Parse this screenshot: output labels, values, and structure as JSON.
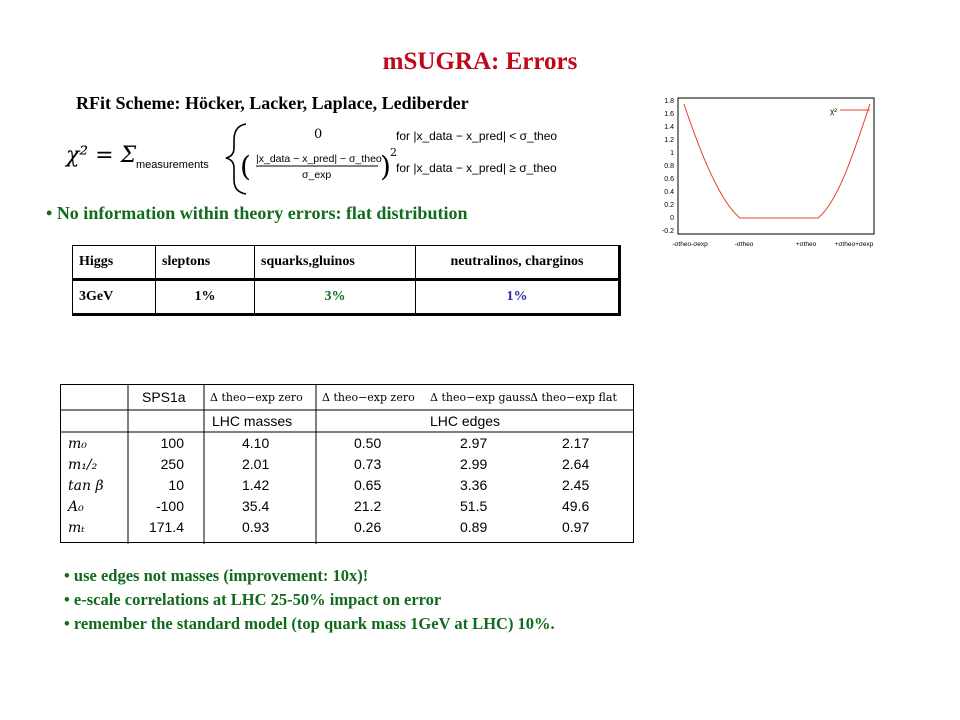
{
  "title": "mSUGRA: Errors",
  "subtitle": "RFit Scheme: Höcker, Lacker, Laplace, Lediberder",
  "formula": {
    "lhs": "χ² = Σ",
    "sum_subscript": "measurements",
    "case1_value": "0",
    "case1_condition": "for |x_data − x_pred| < σ_theo",
    "case2_numerator": "|x_data − x_pred| − σ_theo",
    "case2_denominator": "σ_exp",
    "case2_exponent": "2",
    "case2_condition": "for |x_data − x_pred| ≥ σ_theo"
  },
  "bullet_top": "No information within theory errors: flat distribution",
  "plot": {
    "legend": "χ²",
    "y_ticks": [
      "1.8",
      "1.6",
      "1.4",
      "1.2",
      "1",
      "0.8",
      "0.6",
      "0.4",
      "0.2",
      "0",
      "-0.2"
    ],
    "x_ticks": [
      "-σtheo-σexp",
      "-σtheo",
      "+σtheo",
      "+σtheo+σexp"
    ],
    "curve_color": "#e8402a"
  },
  "error_table": {
    "headers": [
      "Higgs",
      "sleptons",
      "squarks,gluinos",
      "neutralinos, charginos"
    ],
    "values": [
      "3GeV",
      "1%",
      "3%",
      "1%"
    ]
  },
  "sps_table": {
    "corner": "SPS1a",
    "col_headers": [
      "Δ theo−exp zero",
      "Δ theo−exp zero",
      "Δ theo−exp gauss",
      "Δ theo−exp flat"
    ],
    "group_masses": "LHC masses",
    "group_edges": "LHC edges",
    "rows": [
      {
        "param": "m₀",
        "sps": "100",
        "c1": "4.10",
        "c2": "0.50",
        "c3": "2.97",
        "c4": "2.17"
      },
      {
        "param": "m₁/₂",
        "sps": "250",
        "c1": "2.01",
        "c2": "0.73",
        "c3": "2.99",
        "c4": "2.64"
      },
      {
        "param": "tan β",
        "sps": "10",
        "c1": "1.42",
        "c2": "0.65",
        "c3": "3.36",
        "c4": "2.45"
      },
      {
        "param": "A₀",
        "sps": "-100",
        "c1": "35.4",
        "c2": "21.2",
        "c3": "51.5",
        "c4": "49.6"
      },
      {
        "param": "mₜ",
        "sps": "171.4",
        "c1": "0.93",
        "c2": "0.26",
        "c3": "0.89",
        "c4": "0.97"
      }
    ]
  },
  "bullets": [
    "use edges not masses (improvement: 10x)!",
    "e-scale correlations at LHC 25-50% impact on error",
    "remember  the standard model (top quark mass 1GeV at LHC) 10%."
  ]
}
